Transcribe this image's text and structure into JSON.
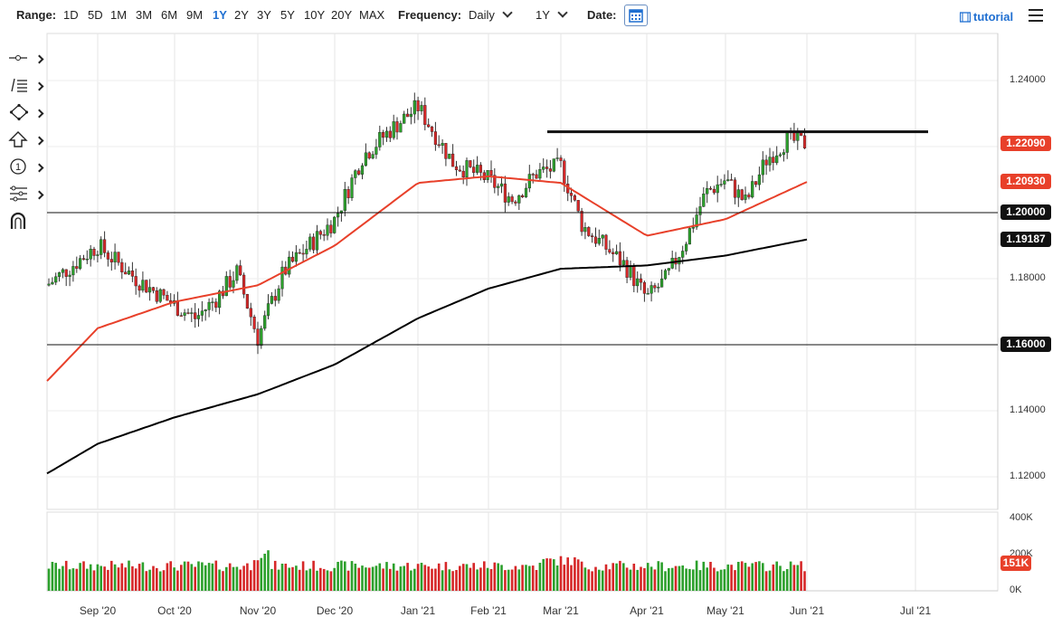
{
  "toolbar": {
    "range_label": "Range:",
    "ranges": [
      "1D",
      "5D",
      "1M",
      "3M",
      "6M",
      "9M",
      "1Y",
      "2Y",
      "3Y",
      "5Y",
      "10Y",
      "20Y",
      "MAX"
    ],
    "active_range": "1Y",
    "frequency_label": "Frequency:",
    "frequency_value": "Daily",
    "period_value": "1Y",
    "date_label": "Date:",
    "tutorial_label": "tutorial",
    "calendar_icon": "calendar-icon",
    "menu_icon": "hamburger-menu-icon"
  },
  "sidebar": {
    "tools": [
      {
        "icon": "crosshair-line-tool-icon"
      },
      {
        "icon": "fibonacci-lines-icon"
      },
      {
        "icon": "shape-tool-icon"
      },
      {
        "icon": "arrow-up-marker-icon"
      },
      {
        "icon": "numbered-annotation-icon"
      },
      {
        "icon": "indicator-settings-icon"
      },
      {
        "icon": "magnet-icon"
      }
    ]
  },
  "colors": {
    "accent": "#1f6fd1",
    "up_candle": "#2ca02c",
    "down_candle": "#d62728",
    "ma50": "#e8402a",
    "ma200": "#000000",
    "price_tag_red": "#e8402a",
    "level_tag_black": "#111111"
  },
  "price_axis": {
    "ticks": [
      "1.24000",
      "1.22000",
      "1.20000",
      "1.18000",
      "1.16000",
      "1.14000",
      "1.12000"
    ]
  },
  "volume_axis": {
    "ticks": [
      "400K",
      "200K",
      "0K"
    ],
    "last_volume_tag": "151K"
  },
  "price_tags": {
    "last_price": "1.22090",
    "ma50": "1.20930",
    "level_high": "1.20000",
    "ma200": "1.19187",
    "level_low": "1.16000"
  },
  "x_axis": {
    "labels": [
      "Sep '20",
      "Oct '20",
      "Nov '20",
      "Dec '20",
      "Jan '21",
      "Feb '21",
      "Mar '21",
      "Apr '21",
      "May '21",
      "Jun '21",
      "Jul '21"
    ]
  },
  "chart_data": {
    "type": "candlestick",
    "instrument_frequency": "Daily",
    "ylim": [
      1.1,
      1.245
    ],
    "horizontal_levels": [
      1.2,
      1.16
    ],
    "resistance_line": {
      "from": [
        "Feb '21",
        1.2245
      ],
      "to": [
        "Jul '21",
        1.2245
      ]
    },
    "close_path": [
      [
        "Aug '20",
        1.178
      ],
      [
        "Sep '20",
        1.19
      ],
      [
        "Sep '20",
        1.18
      ],
      [
        "Oct '20",
        1.172
      ],
      [
        "Oct '20",
        1.168
      ],
      [
        "Oct '20",
        1.174
      ],
      [
        "Oct '20",
        1.182
      ],
      [
        "Nov '20",
        1.162
      ],
      [
        "Nov '20",
        1.182
      ],
      [
        "Nov '20",
        1.19
      ],
      [
        "Dec '20",
        1.198
      ],
      [
        "Dec '20",
        1.217
      ],
      [
        "Dec '20",
        1.225
      ],
      [
        "Jan '21",
        1.232
      ],
      [
        "Jan '21",
        1.215
      ],
      [
        "Feb '21",
        1.21
      ],
      [
        "Feb '21",
        1.204
      ],
      [
        "Feb '21",
        1.212
      ],
      [
        "Mar '21",
        1.214
      ],
      [
        "Mar '21",
        1.196
      ],
      [
        "Mar '21",
        1.19
      ],
      [
        "Mar '21",
        1.184
      ],
      [
        "Apr '21",
        1.174
      ],
      [
        "Apr '21",
        1.18
      ],
      [
        "Apr '21",
        1.192
      ],
      [
        "Apr '21",
        1.206
      ],
      [
        "May '21",
        1.21
      ],
      [
        "May '21",
        1.203
      ],
      [
        "May '21",
        1.216
      ],
      [
        "May '21",
        1.222
      ],
      [
        "Jun '21",
        1.2209
      ]
    ],
    "ma50_path": [
      [
        "Aug '20",
        1.149
      ],
      [
        "Sep '20",
        1.165
      ],
      [
        "Oct '20",
        1.173
      ],
      [
        "Nov '20",
        1.178
      ],
      [
        "Dec '20",
        1.19
      ],
      [
        "Jan '21",
        1.209
      ],
      [
        "Feb '21",
        1.211
      ],
      [
        "Mar '21",
        1.209
      ],
      [
        "Apr '21",
        1.193
      ],
      [
        "May '21",
        1.198
      ],
      [
        "Jun '21",
        1.2093
      ]
    ],
    "ma200_path": [
      [
        "Aug '20",
        1.121
      ],
      [
        "Sep '20",
        1.13
      ],
      [
        "Oct '20",
        1.138
      ],
      [
        "Nov '20",
        1.145
      ],
      [
        "Dec '20",
        1.154
      ],
      [
        "Jan '21",
        1.168
      ],
      [
        "Feb '21",
        1.177
      ],
      [
        "Mar '21",
        1.183
      ],
      [
        "Apr '21",
        1.184
      ],
      [
        "May '21",
        1.187
      ],
      [
        "Jun '21",
        1.19187
      ]
    ],
    "volume_max": 400000,
    "volume_last": 151000
  }
}
